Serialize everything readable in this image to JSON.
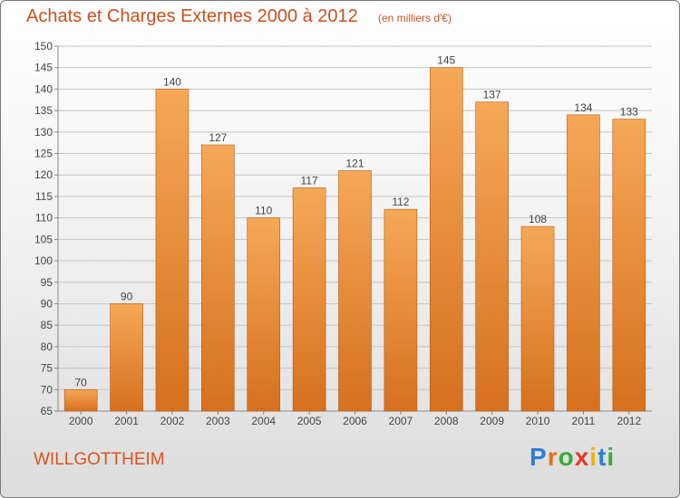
{
  "header": {
    "title": "Achats et Charges Externes 2000 à 2012",
    "unit": "(en milliers d'€)"
  },
  "footer": {
    "place": "WILLGOTTHEIM",
    "brand_letters": [
      "P",
      "r",
      "o",
      "x",
      "i",
      "t",
      "i"
    ],
    "brand_colors": [
      "#2f7fd0",
      "#e8701a",
      "#3aaa3a",
      "#e23b2a",
      "#f0b400",
      "#2f7fd0",
      "#3aaa3a"
    ]
  },
  "chart_data": {
    "type": "bar",
    "title": "Achats et Charges Externes 2000 à 2012",
    "categories": [
      "2000",
      "2001",
      "2002",
      "2003",
      "2004",
      "2005",
      "2006",
      "2007",
      "2008",
      "2009",
      "2010",
      "2011",
      "2012"
    ],
    "values": [
      70,
      90,
      140,
      127,
      110,
      117,
      121,
      112,
      145,
      137,
      108,
      134,
      133
    ],
    "ylim": [
      65,
      150
    ],
    "yticks": [
      65,
      70,
      75,
      80,
      85,
      90,
      95,
      100,
      105,
      110,
      115,
      120,
      125,
      130,
      135,
      140,
      145,
      150
    ],
    "grid": true,
    "bar_color_top": "#f5a857",
    "bar_color_bottom": "#d6701e"
  }
}
